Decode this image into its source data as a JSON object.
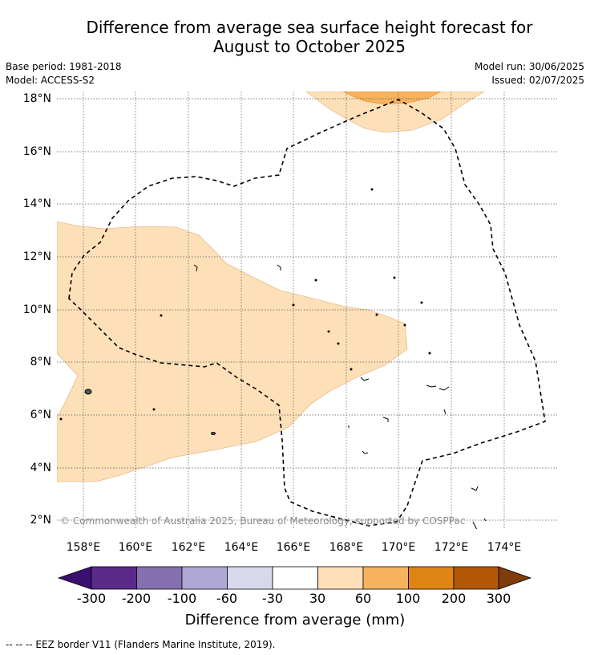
{
  "title": {
    "line1": "Difference from average sea surface height forecast for",
    "line2": "August to October 2025"
  },
  "meta": {
    "base_period": "Base period: 1981-2018",
    "model": "Model: ACCESS-S2",
    "model_run": "Model run: 30/06/2025",
    "issued": "Issued: 02/07/2025"
  },
  "map": {
    "lat_ticks": [
      "18°N",
      "16°N",
      "14°N",
      "12°N",
      "10°N",
      "8°N",
      "6°N",
      "4°N",
      "2°N"
    ],
    "lon_ticks": [
      "158°E",
      "160°E",
      "162°E",
      "164°E",
      "166°E",
      "168°E",
      "170°E",
      "172°E",
      "174°E"
    ],
    "copyright": "© Commonwealth of Australia 2025, Bureau of Meteorology, supported by COSPPac",
    "grid": true
  },
  "colorbar": {
    "ticks": [
      "-300",
      "-200",
      "-100",
      "-60",
      "-30",
      "30",
      "60",
      "100",
      "200",
      "300"
    ],
    "colors": [
      "#3b0f6f",
      "#5a2a8a",
      "#8470b0",
      "#b0a8d4",
      "#d8d8ec",
      "#ffffff",
      "#fde0b8",
      "#f7b25e",
      "#e08414",
      "#b35806",
      "#7f3b08"
    ],
    "label": "Difference from average (mm)"
  },
  "legend": {
    "eez": "--  --  -- EEZ border V11 (Flanders Marine Institute, 2019)."
  }
}
